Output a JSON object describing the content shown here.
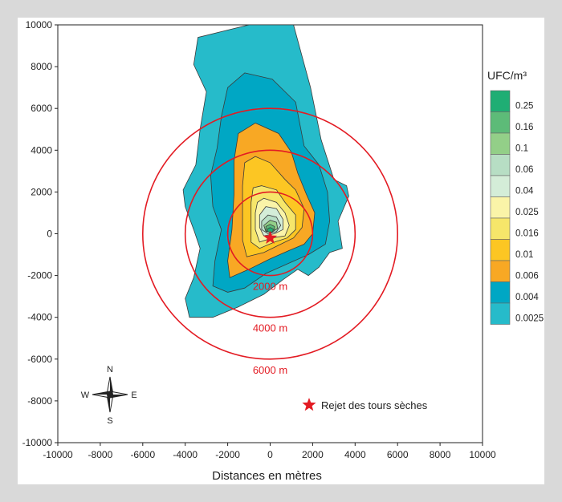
{
  "chart_data": {
    "type": "heatmap",
    "title": "",
    "xlabel": "Distances en mètres",
    "ylabel": "",
    "xlim": [
      -10000,
      10000
    ],
    "ylim": [
      -10000,
      10000
    ],
    "xticks": [
      -10000,
      -8000,
      -6000,
      -4000,
      -2000,
      0,
      2000,
      4000,
      6000,
      8000,
      10000
    ],
    "yticks": [
      -10000,
      -8000,
      -6000,
      -4000,
      -2000,
      0,
      2000,
      4000,
      6000,
      8000,
      10000
    ],
    "grid": false,
    "colorbar": {
      "title": "UFC/m³",
      "levels": [
        "0.25",
        "0.16",
        "0.1",
        "0.06",
        "0.04",
        "0.025",
        "0.016",
        "0.01",
        "0.006",
        "0.004",
        "0.0025"
      ],
      "colors": [
        "#1fae74",
        "#5dbb78",
        "#93cf88",
        "#b7dec4",
        "#d4edd8",
        "#faf4a8",
        "#f6e66a",
        "#fcc623",
        "#f8a824",
        "#00a7c4",
        "#26bbca"
      ]
    },
    "contours": [
      {
        "level": "0.0025",
        "points": [
          [
            -1000,
            10000
          ],
          [
            1100,
            10000
          ],
          [
            1900,
            7000
          ],
          [
            2400,
            4500
          ],
          [
            3000,
            2600
          ],
          [
            3600,
            2300
          ],
          [
            3700,
            1800
          ],
          [
            3200,
            600
          ],
          [
            3400,
            -700
          ],
          [
            2800,
            -900
          ],
          [
            2300,
            -1600
          ],
          [
            1800,
            -2000
          ],
          [
            1300,
            -1700
          ],
          [
            600,
            -2200
          ],
          [
            -300,
            -2900
          ],
          [
            -1500,
            -3500
          ],
          [
            -2700,
            -4000
          ],
          [
            -3800,
            -4000
          ],
          [
            -4000,
            -3100
          ],
          [
            -3600,
            -2100
          ],
          [
            -3300,
            -700
          ],
          [
            -3600,
            200
          ],
          [
            -4000,
            1300
          ],
          [
            -4100,
            2100
          ],
          [
            -3500,
            3300
          ],
          [
            -3300,
            5000
          ],
          [
            -3000,
            6800
          ],
          [
            -3600,
            8100
          ],
          [
            -3400,
            9400
          ]
        ]
      },
      {
        "level": "0.004",
        "points": [
          [
            -1200,
            7700
          ],
          [
            100,
            7400
          ],
          [
            1200,
            6300
          ],
          [
            1600,
            4200
          ],
          [
            2300,
            3300
          ],
          [
            2700,
            2000
          ],
          [
            2800,
            600
          ],
          [
            2600,
            -500
          ],
          [
            1800,
            -1000
          ],
          [
            900,
            -1400
          ],
          [
            -200,
            -1900
          ],
          [
            -1200,
            -2600
          ],
          [
            -2000,
            -2800
          ],
          [
            -2700,
            -2500
          ],
          [
            -2600,
            -1300
          ],
          [
            -2300,
            200
          ],
          [
            -2700,
            1300
          ],
          [
            -2800,
            2800
          ],
          [
            -2500,
            4100
          ],
          [
            -2300,
            5600
          ],
          [
            -2000,
            7000
          ]
        ]
      },
      {
        "level": "0.006",
        "points": [
          [
            -700,
            5300
          ],
          [
            400,
            4800
          ],
          [
            1000,
            3900
          ],
          [
            1300,
            2900
          ],
          [
            1700,
            1900
          ],
          [
            2100,
            1000
          ],
          [
            2000,
            0
          ],
          [
            1600,
            -500
          ],
          [
            900,
            -800
          ],
          [
            0,
            -1200
          ],
          [
            -1000,
            -1700
          ],
          [
            -1900,
            -2100
          ],
          [
            -2000,
            -1300
          ],
          [
            -1800,
            200
          ],
          [
            -1700,
            1900
          ],
          [
            -1700,
            3500
          ],
          [
            -1500,
            4800
          ]
        ]
      },
      {
        "level": "0.01",
        "points": [
          [
            -700,
            3700
          ],
          [
            0,
            3400
          ],
          [
            700,
            2600
          ],
          [
            1200,
            2100
          ],
          [
            1600,
            1200
          ],
          [
            1500,
            300
          ],
          [
            1100,
            -200
          ],
          [
            500,
            -500
          ],
          [
            -300,
            -900
          ],
          [
            -1100,
            -1100
          ],
          [
            -1300,
            -300
          ],
          [
            -1300,
            1000
          ],
          [
            -1300,
            2300
          ],
          [
            -1200,
            3400
          ]
        ]
      },
      {
        "level": "0.016",
        "points": [
          [
            -400,
            2300
          ],
          [
            300,
            2100
          ],
          [
            700,
            1500
          ],
          [
            1200,
            900
          ],
          [
            1200,
            200
          ],
          [
            800,
            -200
          ],
          [
            200,
            -400
          ],
          [
            -500,
            -700
          ],
          [
            -900,
            -400
          ],
          [
            -900,
            500
          ],
          [
            -900,
            1500
          ],
          [
            -800,
            2200
          ]
        ]
      },
      {
        "level": "0.025",
        "points": [
          [
            -300,
            1700
          ],
          [
            300,
            1500
          ],
          [
            700,
            1000
          ],
          [
            900,
            400
          ],
          [
            700,
            -100
          ],
          [
            100,
            -200
          ],
          [
            -500,
            -400
          ],
          [
            -700,
            200
          ],
          [
            -700,
            1000
          ],
          [
            -600,
            1500
          ]
        ]
      },
      {
        "level": "0.04",
        "points": [
          [
            -200,
            1300
          ],
          [
            300,
            1200
          ],
          [
            600,
            700
          ],
          [
            600,
            200
          ],
          [
            200,
            0
          ],
          [
            -300,
            -100
          ],
          [
            -500,
            300
          ],
          [
            -500,
            900
          ]
        ]
      },
      {
        "level": "0.06",
        "points": [
          [
            -100,
            900
          ],
          [
            300,
            800
          ],
          [
            500,
            400
          ],
          [
            300,
            100
          ],
          [
            -100,
            0
          ],
          [
            -400,
            200
          ],
          [
            -400,
            600
          ]
        ]
      },
      {
        "level": "0.1",
        "points": [
          [
            0,
            650
          ],
          [
            300,
            550
          ],
          [
            350,
            250
          ],
          [
            100,
            100
          ],
          [
            -200,
            100
          ],
          [
            -300,
            400
          ]
        ]
      },
      {
        "level": "0.16",
        "points": [
          [
            0,
            450
          ],
          [
            200,
            350
          ],
          [
            200,
            150
          ],
          [
            0,
            50
          ],
          [
            -200,
            150
          ],
          [
            -200,
            350
          ]
        ]
      },
      {
        "level": "0.25",
        "points": [
          [
            0,
            300
          ],
          [
            150,
            220
          ],
          [
            120,
            100
          ],
          [
            0,
            60
          ],
          [
            -120,
            110
          ],
          [
            -130,
            230
          ]
        ]
      }
    ],
    "source": {
      "x": 0,
      "y": -200,
      "label": "Rejet des tours sèches"
    },
    "distance_circles": [
      {
        "radius": 2000,
        "label": "2000 m"
      },
      {
        "radius": 4000,
        "label": "4000 m"
      },
      {
        "radius": 6000,
        "label": "6000 m"
      }
    ],
    "compass": {
      "n": "N",
      "s": "S",
      "e": "E",
      "w": "W"
    }
  },
  "colors": {
    "circle": "#e31b23",
    "star": "#e31b23",
    "axis": "#222222",
    "contour_line": "#3a3a3a"
  }
}
